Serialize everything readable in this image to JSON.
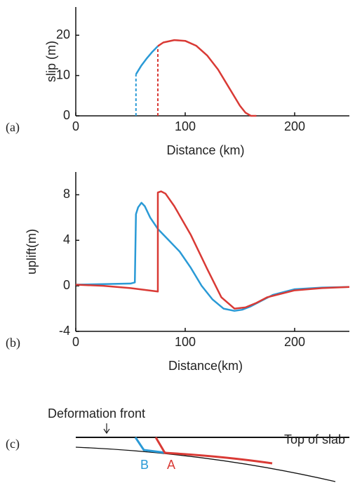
{
  "chart_data": [
    {
      "type": "line",
      "panel_label": "(a)",
      "xlabel": "Distance (km)",
      "ylabel": "slip (m)",
      "xlim": [
        0,
        250
      ],
      "ylim": [
        0,
        27
      ],
      "xticks": [
        0,
        100,
        200
      ],
      "yticks": [
        0,
        10,
        20
      ],
      "series": [
        {
          "color": "#2a9ad6",
          "dash": true,
          "x": [
            55,
            55
          ],
          "values": [
            0,
            10.3
          ]
        },
        {
          "color": "#d93a35",
          "dash": true,
          "x": [
            75,
            75
          ],
          "values": [
            0,
            17.3
          ]
        },
        {
          "color": "#2a9ad6",
          "dash": false,
          "x": [
            55,
            60,
            65,
            70,
            75
          ],
          "values": [
            10.3,
            12.5,
            14.3,
            15.9,
            17.3
          ]
        },
        {
          "color": "#d93a35",
          "dash": false,
          "x": [
            75,
            80,
            90,
            100,
            110,
            120,
            130,
            140,
            150,
            155,
            160,
            165
          ],
          "values": [
            17.3,
            18.2,
            18.8,
            18.6,
            17.4,
            15,
            11.5,
            7,
            2.5,
            0.8,
            0,
            0
          ]
        }
      ]
    },
    {
      "type": "line",
      "panel_label": "(b)",
      "xlabel": "Distance(km)",
      "ylabel": "uplift(m)",
      "xlim": [
        0,
        250
      ],
      "ylim": [
        -4,
        10
      ],
      "xticks": [
        0,
        100,
        200
      ],
      "yticks": [
        -4,
        0,
        4,
        8
      ],
      "series": [
        {
          "color": "#2a9ad6",
          "dash": false,
          "x": [
            0,
            50,
            54,
            55,
            57,
            60,
            63,
            68,
            75,
            85,
            95,
            105,
            115,
            125,
            135,
            145,
            152,
            160,
            170,
            180,
            200,
            225,
            250
          ],
          "values": [
            0.1,
            0.2,
            0.3,
            6.3,
            6.9,
            7.3,
            7.0,
            6.0,
            5.0,
            4.0,
            3.0,
            1.6,
            0,
            -1.2,
            -2.0,
            -2.2,
            -2.1,
            -1.8,
            -1.3,
            -0.8,
            -0.3,
            -0.15,
            -0.1
          ]
        },
        {
          "color": "#d93a35",
          "dash": false,
          "x": [
            0,
            25,
            50,
            75,
            75,
            78,
            82,
            90,
            105,
            120,
            133,
            145,
            155,
            165,
            175,
            200,
            225,
            250
          ],
          "values": [
            0.1,
            0,
            -0.2,
            -0.5,
            8.2,
            8.3,
            8.1,
            7.0,
            4.5,
            1.5,
            -1.0,
            -2.0,
            -1.9,
            -1.5,
            -1.0,
            -0.4,
            -0.2,
            -0.1
          ]
        }
      ]
    }
  ],
  "diagram": {
    "panel_label": "(c)",
    "front_label": "Deformation front",
    "label_b": "B",
    "label_a": "A",
    "slab_label": "Top of slab"
  }
}
